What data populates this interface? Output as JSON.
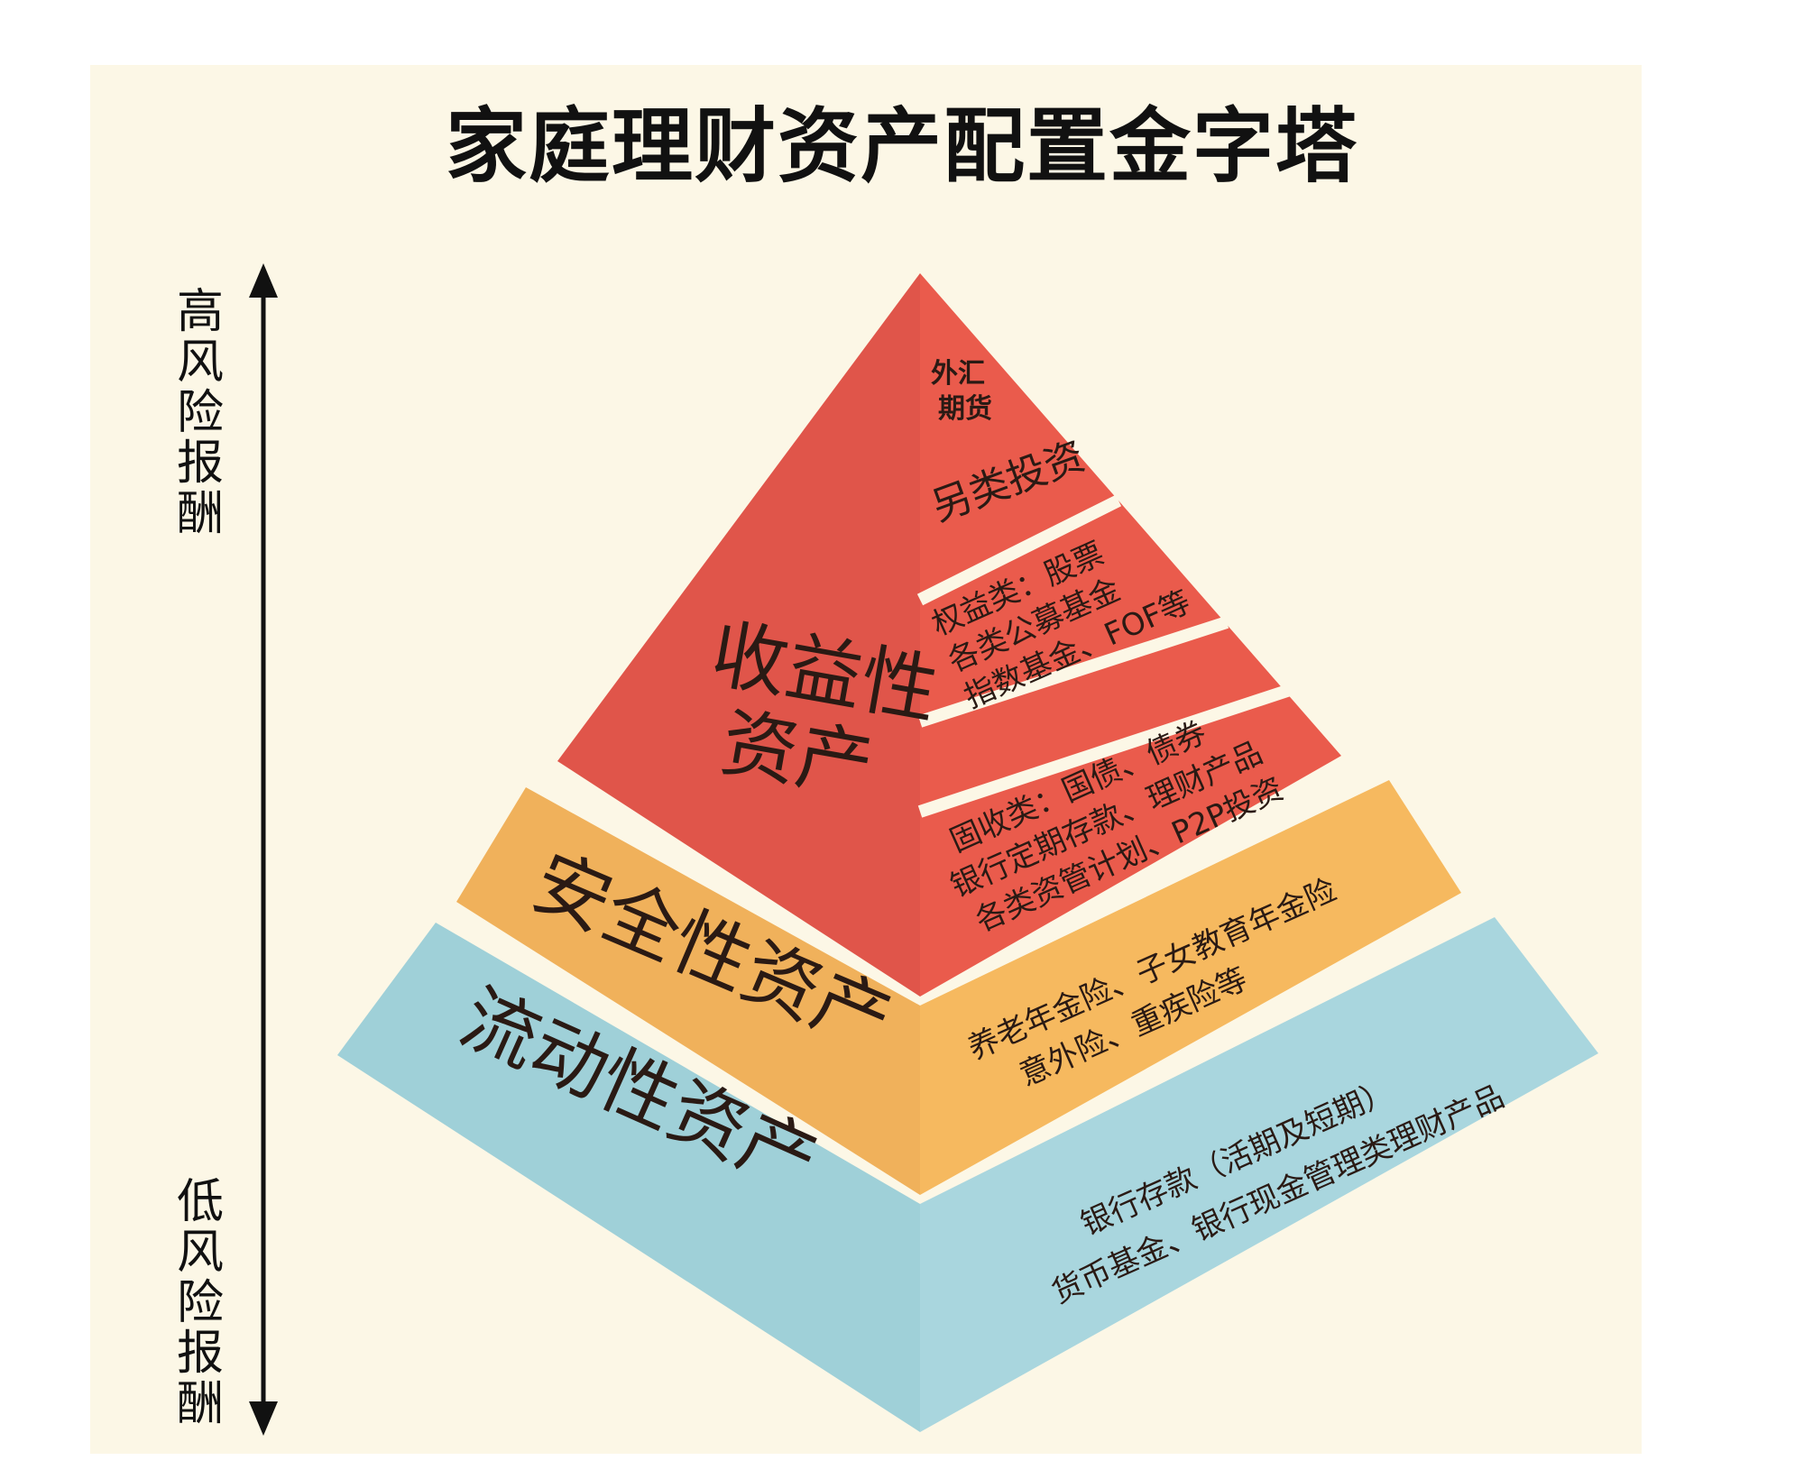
{
  "title": "家庭理财资产配置金字塔",
  "axis": {
    "top_label": "高风险报酬",
    "bottom_label": "低风险报酬"
  },
  "colors": {
    "background": "#fcf7e6",
    "red_left": "#e0554a",
    "red_right": "#ea5b4c",
    "orange_left": "#f0b15b",
    "orange_right": "#f6b95f",
    "blue_left": "#9fd0d8",
    "blue_right": "#a9d6de"
  },
  "tiers": {
    "return": {
      "name": "收益性资产",
      "name_line1": "收益性",
      "name_line2": "资产",
      "segments": {
        "top_line1": "外汇",
        "top_line2": "期货",
        "alt": "另类投资",
        "equity_line1": "权益类：股票",
        "equity_line2": "各类公募基金",
        "equity_line3": "指数基金、FOF等",
        "fixed_line1": "固收类：国债、债券",
        "fixed_line2": "银行定期存款、理财产品",
        "fixed_line3": "各类资管计划、P2P投资"
      }
    },
    "safety": {
      "name": "安全性资产",
      "line1": "养老年金险、子女教育年金险",
      "line2": "意外险、重疾险等"
    },
    "liquidity": {
      "name": "流动性资产",
      "line1": "银行存款（活期及短期）",
      "line2": "货币基金、银行现金管理类理财产品"
    }
  }
}
